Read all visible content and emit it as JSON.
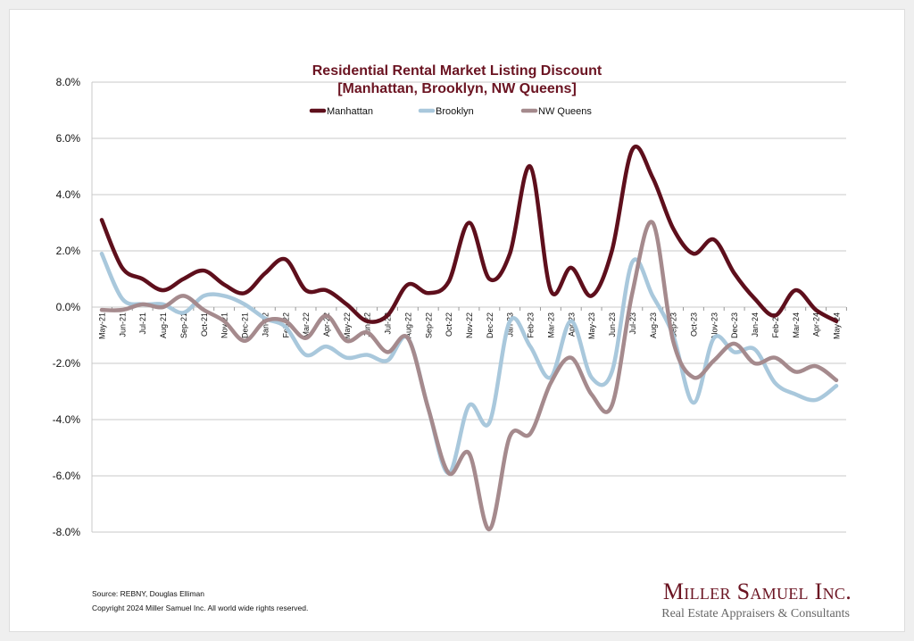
{
  "chart_data": {
    "type": "line",
    "title": "Residential Rental Market Listing Discount",
    "subtitle": "[Manhattan, Brooklyn, NW Queens]",
    "xlabel": "",
    "ylabel": "",
    "ylim": [
      -8,
      8
    ],
    "yticks": [
      8,
      6,
      4,
      2,
      0,
      -2,
      -4,
      -6,
      -8
    ],
    "ytick_labels": [
      "8.0%",
      "6.0%",
      "4.0%",
      "2.0%",
      "0.0%",
      "-2.0%",
      "-4.0%",
      "-6.0%",
      "-8.0%"
    ],
    "grid": true,
    "legend_position": "top",
    "categories": [
      "May-21",
      "Jun-21",
      "Jul-21",
      "Aug-21",
      "Sep-21",
      "Oct-21",
      "Nov-21",
      "Dec-21",
      "Jan-22",
      "Feb-22",
      "Mar-22",
      "Apr-22",
      "May-22",
      "Jun-22",
      "Jul-22",
      "Aug-22",
      "Sep-22",
      "Oct-22",
      "Nov-22",
      "Dec-22",
      "Jan-23",
      "Feb-23",
      "Mar-23",
      "Apr-23",
      "May-23",
      "Jun-23",
      "Jul-23",
      "Aug-23",
      "Sep-23",
      "Oct-23",
      "Nov-23",
      "Dec-23",
      "Jan-24",
      "Feb-24",
      "Mar-24",
      "Apr-24",
      "May-24"
    ],
    "series": [
      {
        "name": "Manhattan",
        "color": "#5e0f1c",
        "values": [
          3.1,
          1.4,
          1.0,
          0.6,
          1.0,
          1.3,
          0.8,
          0.5,
          1.2,
          1.7,
          0.6,
          0.6,
          0.1,
          -0.5,
          -0.3,
          0.8,
          0.5,
          0.9,
          3.0,
          1.0,
          1.9,
          5.0,
          0.6,
          1.4,
          0.4,
          2.0,
          5.6,
          4.6,
          2.8,
          1.9,
          2.4,
          1.2,
          0.3,
          -0.3,
          0.6,
          -0.1,
          -0.5
        ]
      },
      {
        "name": "Brooklyn",
        "color": "#a9c8dc",
        "values": [
          1.9,
          0.3,
          0.1,
          0.1,
          -0.2,
          0.4,
          0.4,
          0.1,
          -0.4,
          -0.7,
          -1.7,
          -1.4,
          -1.8,
          -1.7,
          -1.9,
          -1.1,
          -3.6,
          -5.9,
          -3.5,
          -4.1,
          -0.5,
          -1.4,
          -2.5,
          -0.5,
          -2.5,
          -2.3,
          1.6,
          0.4,
          -1.0,
          -3.4,
          -1.1,
          -1.6,
          -1.5,
          -2.7,
          -3.1,
          -3.3,
          -2.8
        ]
      },
      {
        "name": "NW Queens",
        "color": "#a58a8d",
        "values": [
          -0.1,
          -0.1,
          0.1,
          0.0,
          0.4,
          -0.1,
          -0.5,
          -1.2,
          -0.5,
          -0.5,
          -1.1,
          -0.3,
          -1.2,
          -0.9,
          -1.6,
          -1.1,
          -3.6,
          -5.9,
          -5.2,
          -7.9,
          -4.6,
          -4.5,
          -2.7,
          -1.8,
          -3.1,
          -3.5,
          0.5,
          3.0,
          -1.2,
          -2.5,
          -1.9,
          -1.3,
          -2.0,
          -1.8,
          -2.3,
          -2.1,
          -2.6
        ]
      }
    ]
  },
  "footer": {
    "source": "Source: REBNY, Douglas Elliman",
    "copyright": "Copyright 2024 Miller Samuel Inc.  All world wide rights reserved."
  },
  "logo": {
    "name": "Miller Samuel Inc.",
    "tagline": "Real Estate Appraisers & Consultants"
  }
}
